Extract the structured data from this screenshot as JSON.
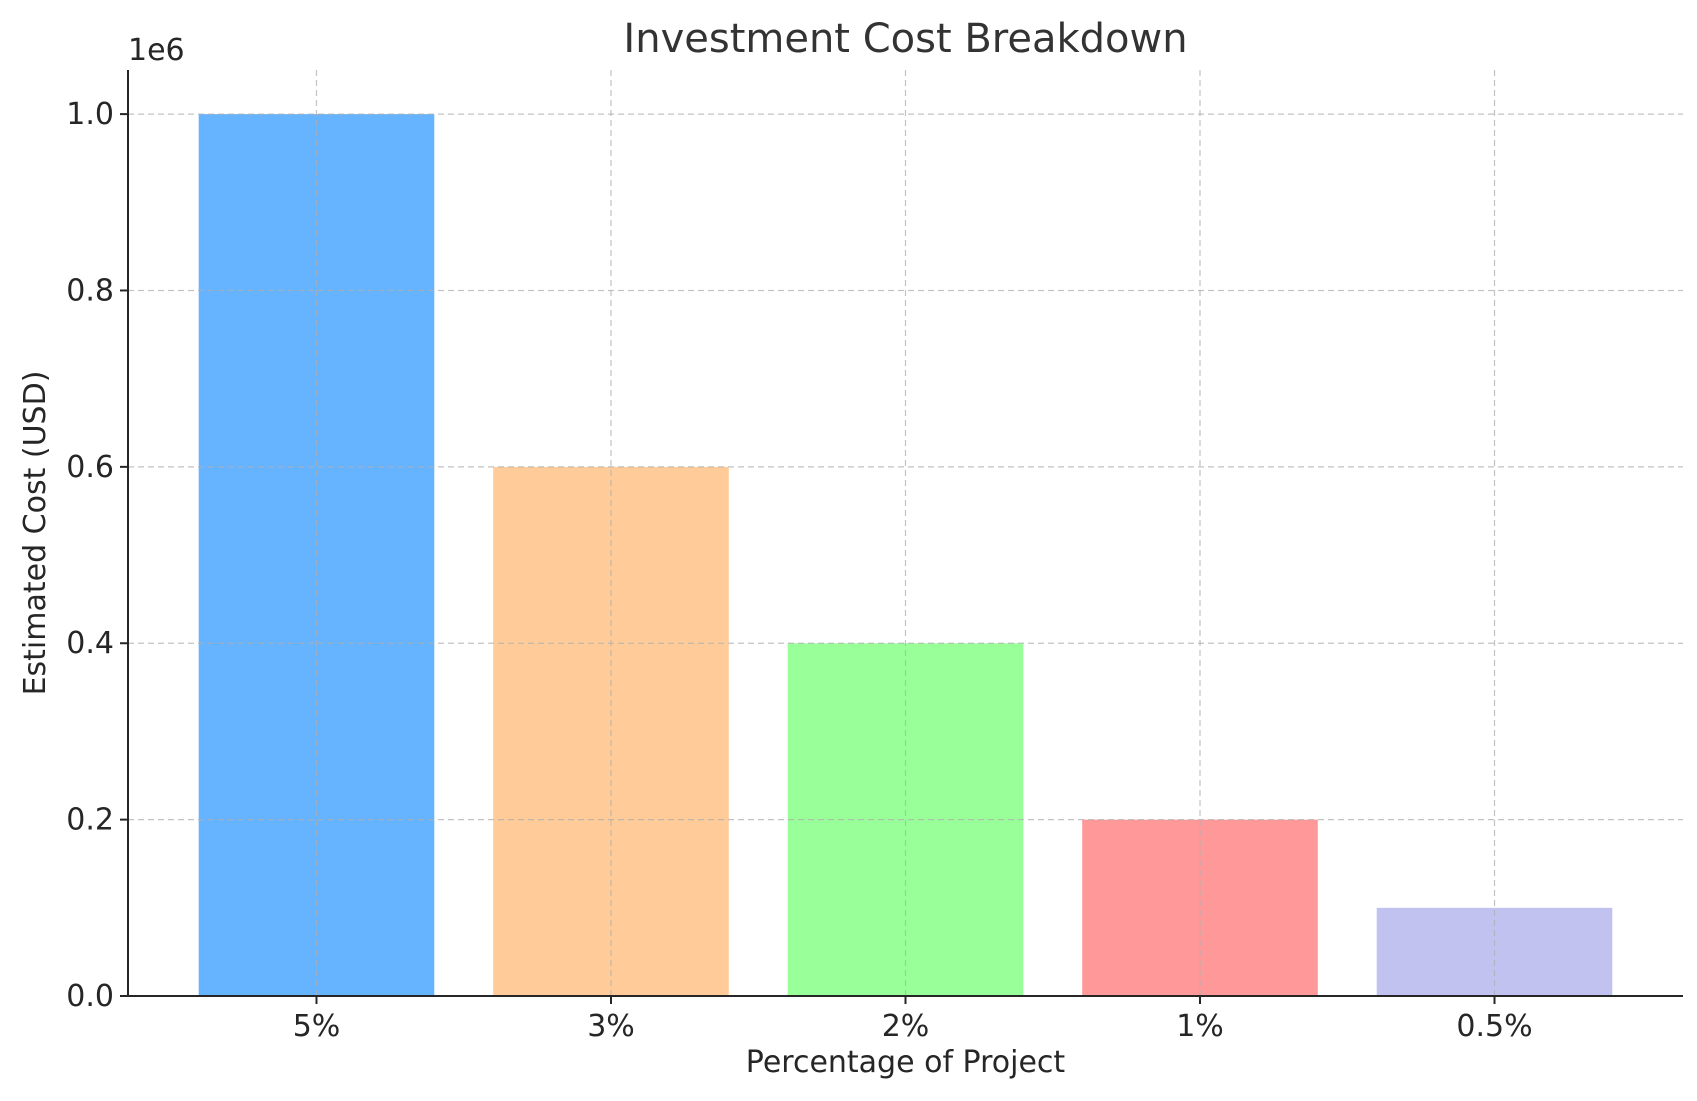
{
  "chart_data": {
    "type": "bar",
    "title": "Investment Cost Breakdown",
    "xlabel": "Percentage of Project",
    "ylabel": "Estimated Cost (USD)",
    "categories": [
      "5%",
      "3%",
      "2%",
      "1%",
      "0.5%"
    ],
    "values": [
      1000000,
      600000,
      400000,
      200000,
      100000
    ],
    "colors": [
      "#66b3ff",
      "#ffcc99",
      "#99ff99",
      "#ff9999",
      "#c2c2f0"
    ],
    "ylim": [
      0,
      1050000
    ],
    "yticks": [
      0,
      200000,
      400000,
      600000,
      800000,
      1000000
    ],
    "ytick_labels": [
      "0.0",
      "0.2",
      "0.4",
      "0.6",
      "0.8",
      "1.0"
    ],
    "y_offset_label": "1e6",
    "grid": true,
    "legend": "none"
  }
}
